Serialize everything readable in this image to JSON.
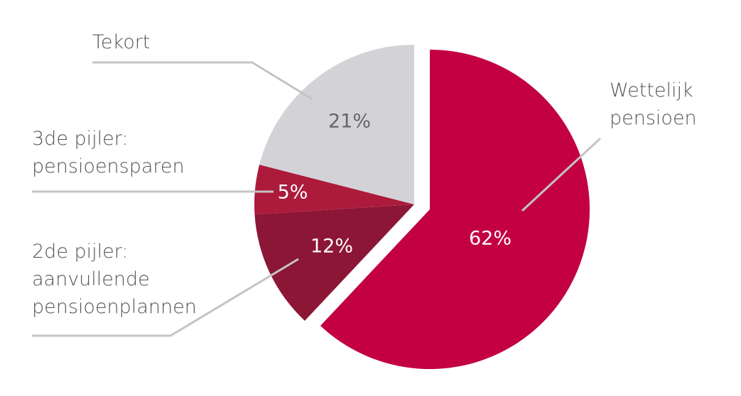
{
  "chart_data": {
    "type": "pie",
    "categories": [
      "Wettelijk pensioen",
      "2de pijler: aanvullende pensioenplannen",
      "3de pijler: pensioensparen",
      "Tekort"
    ],
    "values": [
      62,
      12,
      5,
      21
    ],
    "value_labels": [
      "62%",
      "12%",
      "5%",
      "21%"
    ],
    "colors": [
      "#c20042",
      "#8c1636",
      "#ac1b3c",
      "#d3d3d7"
    ]
  }
}
